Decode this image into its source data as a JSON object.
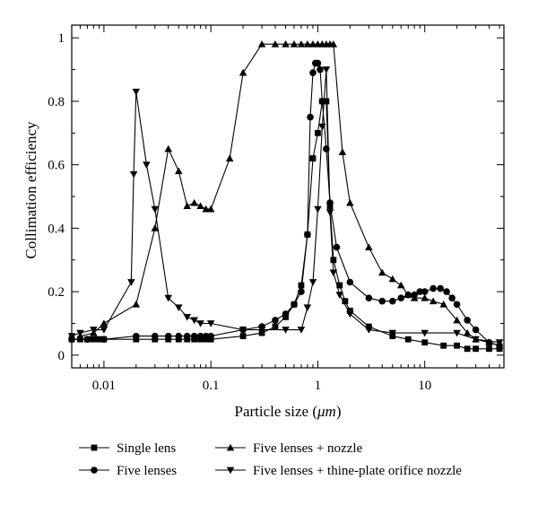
{
  "chart_data": {
    "type": "line",
    "xlabel_prefix": "Particle size (",
    "xlabel_unit": "μm",
    "xlabel_suffix": ")",
    "ylabel": "Collimation efficiency",
    "x_scale": "log",
    "xlim": [
      0.005,
      55
    ],
    "ylim": [
      -0.04,
      1.04
    ],
    "x_ticks": [
      {
        "value": 0.01,
        "label": "0.01"
      },
      {
        "value": 0.1,
        "label": "0.1"
      },
      {
        "value": 1,
        "label": "1"
      },
      {
        "value": 10,
        "label": "10"
      }
    ],
    "y_ticks": [
      {
        "value": 0,
        "label": "0"
      },
      {
        "value": 0.2,
        "label": "0.2"
      },
      {
        "value": 0.4,
        "label": "0.4"
      },
      {
        "value": 0.6,
        "label": "0.6"
      },
      {
        "value": 0.8,
        "label": "0.8"
      },
      {
        "value": 1,
        "label": "1"
      }
    ],
    "grid": false,
    "legend_position": "bottom",
    "series": [
      {
        "name": "Single lens",
        "marker": "square",
        "x": [
          0.005,
          0.006,
          0.007,
          0.008,
          0.009,
          0.01,
          0.02,
          0.03,
          0.04,
          0.05,
          0.06,
          0.07,
          0.08,
          0.09,
          0.1,
          0.2,
          0.3,
          0.4,
          0.5,
          0.6,
          0.7,
          0.8,
          0.9,
          1.0,
          1.1,
          1.2,
          1.3,
          1.4,
          1.6,
          1.8,
          2.0,
          3.0,
          5.0,
          7.0,
          10,
          15,
          20,
          25,
          30,
          40,
          50
        ],
        "y": [
          0.05,
          0.05,
          0.05,
          0.05,
          0.05,
          0.05,
          0.05,
          0.05,
          0.05,
          0.05,
          0.05,
          0.05,
          0.05,
          0.05,
          0.05,
          0.06,
          0.07,
          0.09,
          0.12,
          0.16,
          0.22,
          0.38,
          0.62,
          0.7,
          0.8,
          0.8,
          0.47,
          0.3,
          0.22,
          0.17,
          0.14,
          0.09,
          0.06,
          0.05,
          0.04,
          0.03,
          0.03,
          0.02,
          0.02,
          0.02,
          0.02
        ]
      },
      {
        "name": "Five lenses",
        "marker": "circle",
        "x": [
          0.005,
          0.007,
          0.01,
          0.02,
          0.03,
          0.04,
          0.05,
          0.06,
          0.07,
          0.08,
          0.09,
          0.1,
          0.2,
          0.3,
          0.4,
          0.5,
          0.6,
          0.7,
          0.8,
          0.85,
          0.9,
          0.95,
          1.0,
          1.05,
          1.1,
          1.2,
          1.3,
          1.5,
          2.0,
          3.0,
          4.0,
          5.0,
          6.0,
          7.0,
          8.0,
          9.0,
          10,
          12,
          14,
          16,
          18,
          20,
          25,
          30,
          40,
          50
        ],
        "y": [
          0.05,
          0.05,
          0.05,
          0.06,
          0.06,
          0.06,
          0.06,
          0.06,
          0.06,
          0.06,
          0.06,
          0.06,
          0.08,
          0.09,
          0.11,
          0.13,
          0.16,
          0.2,
          0.38,
          0.75,
          0.89,
          0.92,
          0.92,
          0.9,
          0.8,
          0.65,
          0.48,
          0.34,
          0.23,
          0.18,
          0.17,
          0.17,
          0.18,
          0.19,
          0.19,
          0.2,
          0.2,
          0.21,
          0.21,
          0.2,
          0.18,
          0.16,
          0.11,
          0.08,
          0.04,
          0.03
        ]
      },
      {
        "name": "Five lenses + nozzle",
        "marker": "triangle-up",
        "x": [
          0.006,
          0.008,
          0.01,
          0.02,
          0.03,
          0.04,
          0.05,
          0.06,
          0.07,
          0.08,
          0.09,
          0.1,
          0.15,
          0.2,
          0.3,
          0.4,
          0.5,
          0.6,
          0.7,
          0.8,
          0.9,
          1.0,
          1.1,
          1.2,
          1.3,
          1.4,
          1.7,
          2.0,
          3.0,
          4.0,
          5.0,
          6.0,
          7.0,
          8.0,
          10,
          12,
          15,
          20,
          25,
          30,
          40,
          50
        ],
        "y": [
          0.06,
          0.07,
          0.1,
          0.16,
          0.4,
          0.65,
          0.58,
          0.47,
          0.48,
          0.47,
          0.46,
          0.46,
          0.62,
          0.89,
          0.98,
          0.98,
          0.98,
          0.98,
          0.98,
          0.98,
          0.98,
          0.98,
          0.98,
          0.98,
          0.98,
          0.98,
          0.64,
          0.48,
          0.34,
          0.26,
          0.24,
          0.22,
          0.19,
          0.18,
          0.18,
          0.17,
          0.16,
          0.11,
          0.07,
          0.05,
          0.04,
          0.03
        ]
      },
      {
        "name": "Five lenses + thine-plate orifice nozzle",
        "marker": "triangle-down",
        "x": [
          0.005,
          0.006,
          0.008,
          0.01,
          0.018,
          0.019,
          0.02,
          0.025,
          0.03,
          0.04,
          0.05,
          0.06,
          0.07,
          0.08,
          0.1,
          0.2,
          0.3,
          0.5,
          0.7,
          0.8,
          0.9,
          1.0,
          1.1,
          1.2,
          1.3,
          1.4,
          1.6,
          2.0,
          3.0,
          5.0,
          10,
          20,
          30,
          50
        ],
        "y": [
          0.06,
          0.07,
          0.08,
          0.08,
          0.23,
          0.57,
          0.83,
          0.6,
          0.46,
          0.18,
          0.15,
          0.12,
          0.11,
          0.1,
          0.1,
          0.08,
          0.08,
          0.08,
          0.08,
          0.15,
          0.23,
          0.46,
          0.72,
          0.9,
          0.45,
          0.26,
          0.19,
          0.13,
          0.08,
          0.07,
          0.07,
          0.07,
          0.05,
          0.04
        ]
      }
    ]
  }
}
